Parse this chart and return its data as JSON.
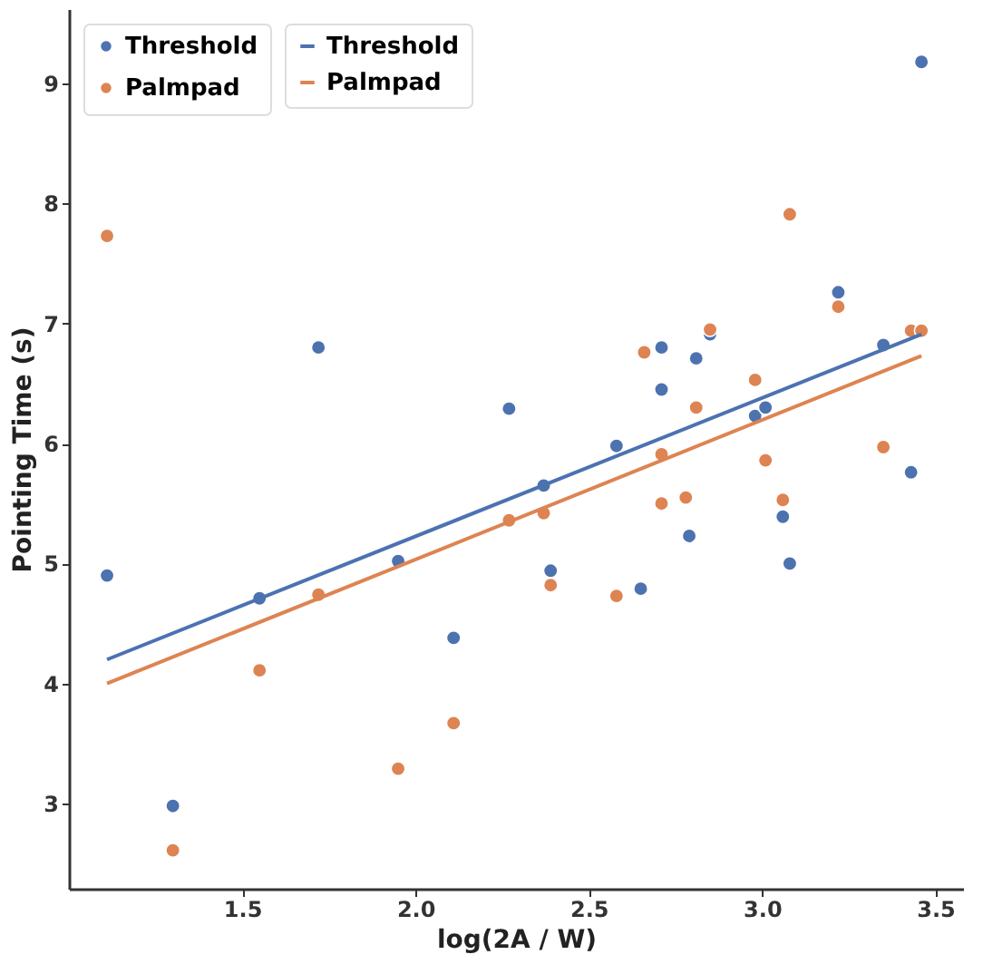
{
  "chart_data": {
    "type": "scatter",
    "xlabel": "log(2A / W)",
    "ylabel": "Pointing Time (s)",
    "xlim": [
      1.0,
      3.58
    ],
    "ylim": [
      2.29,
      9.62
    ],
    "xticks": [
      1.5,
      {
        "value": 2,
        "label": "2.0"
      },
      2.5,
      {
        "value": 3,
        "label": "3.0"
      },
      3.5
    ],
    "yticks": [
      3,
      4,
      5,
      6,
      7,
      8,
      9
    ],
    "grid": false,
    "legend": "top left",
    "line_style": "solid",
    "series": [
      {
        "name": "Threshold",
        "color": "#4c72b0",
        "marker": "circle",
        "x": [
          1.11,
          1.3,
          1.55,
          1.72,
          1.95,
          2.11,
          2.27,
          2.37,
          2.39,
          2.58,
          2.65,
          2.71,
          2.71,
          2.79,
          2.81,
          2.85,
          2.98,
          3.01,
          3.06,
          3.08,
          3.22,
          3.35,
          3.43,
          3.46
        ],
        "values": [
          4.9,
          2.98,
          4.71,
          6.8,
          5.02,
          4.38,
          6.29,
          5.65,
          4.94,
          5.98,
          4.79,
          6.8,
          6.45,
          5.23,
          6.71,
          6.91,
          6.23,
          6.3,
          5.39,
          5.0,
          7.26,
          6.82,
          5.76,
          9.18
        ]
      },
      {
        "name": "Palmpad",
        "color": "#dd8452",
        "marker": "circle",
        "x": [
          1.11,
          1.3,
          1.55,
          1.72,
          1.95,
          2.11,
          2.27,
          2.37,
          2.39,
          2.58,
          2.66,
          2.71,
          2.71,
          2.78,
          2.81,
          2.85,
          2.98,
          3.01,
          3.06,
          3.08,
          3.22,
          3.35,
          3.43,
          3.46
        ],
        "values": [
          7.73,
          2.61,
          4.11,
          4.74,
          3.29,
          3.67,
          5.36,
          5.42,
          4.82,
          4.73,
          6.76,
          5.91,
          5.5,
          5.55,
          6.3,
          6.95,
          6.53,
          5.86,
          5.53,
          7.91,
          7.14,
          5.97,
          6.94,
          6.94
        ]
      },
      {
        "type": "line",
        "name": "Threshold",
        "color": "#4c72b0",
        "marker": "none",
        "x": [
          1.11,
          3.46
        ],
        "values": [
          4.2,
          6.91
        ]
      },
      {
        "type": "line",
        "name": "Palmpad",
        "color": "#dd8452",
        "marker": "none",
        "x": [
          1.11,
          3.46
        ],
        "values": [
          4.0,
          6.73
        ]
      }
    ]
  }
}
